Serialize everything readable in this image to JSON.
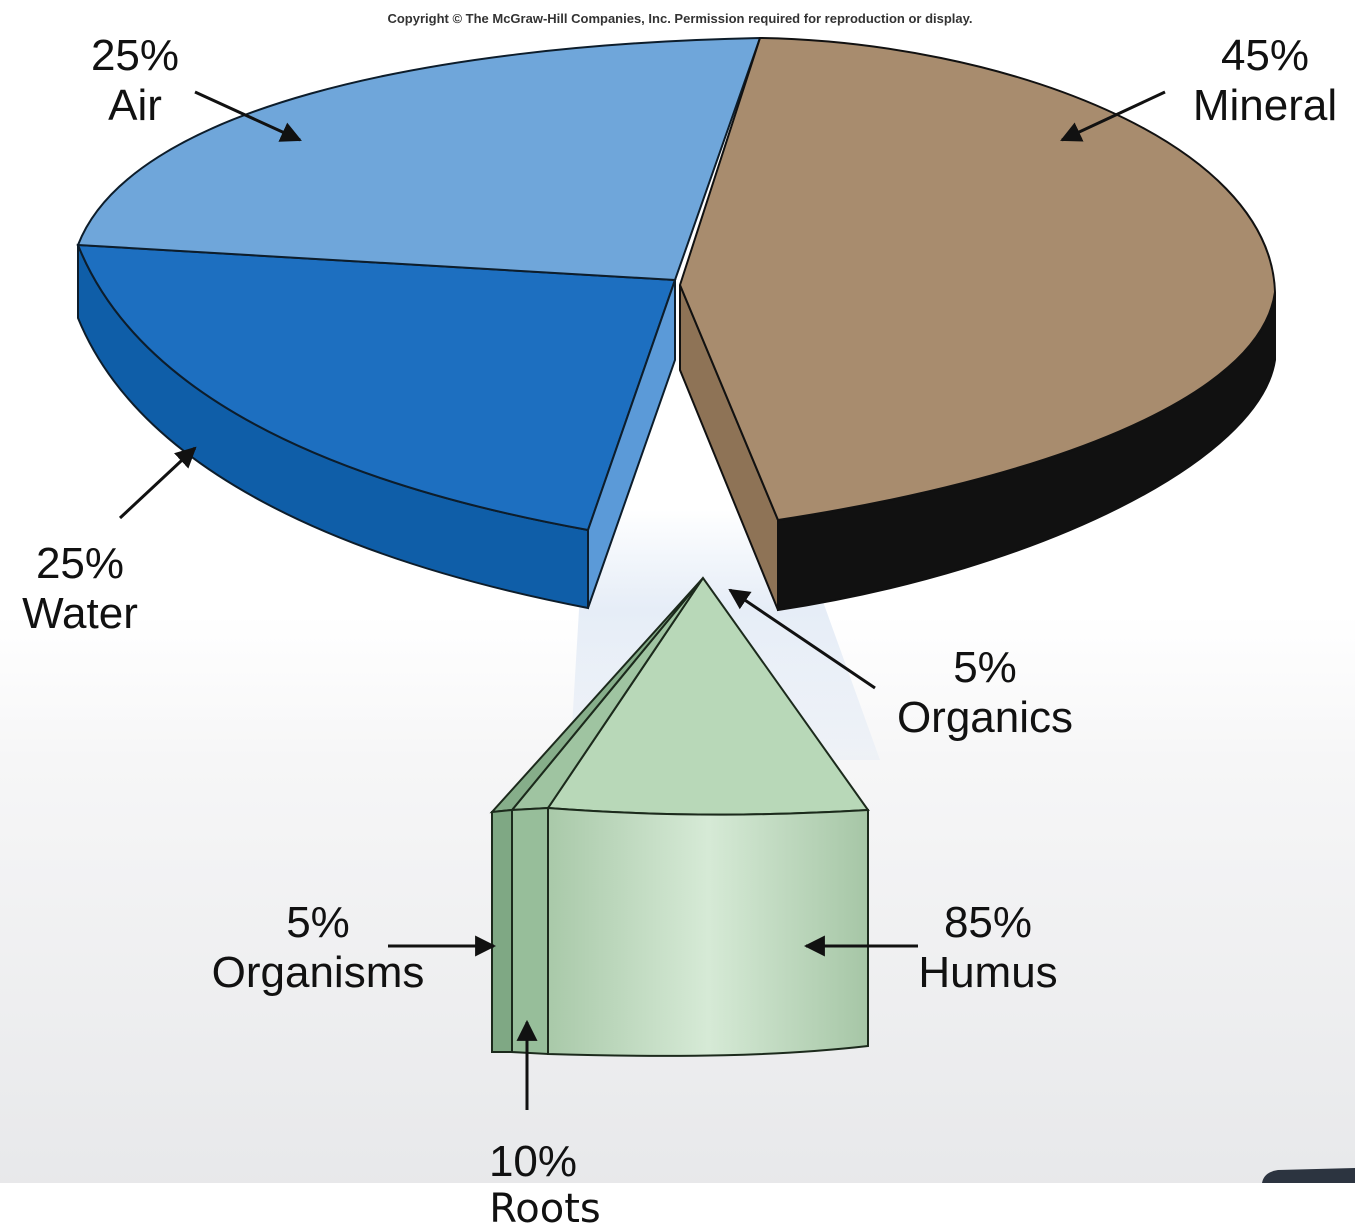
{
  "copyright": "Copyright © The McGraw-Hill Companies, Inc. Permission required for reproduction or display.",
  "colors": {
    "air": "#6fa6da",
    "water": "#1d6fc0",
    "mineral": "#a88c6e",
    "organics": "#b8d8b8",
    "humus": "#b7d3b7",
    "roots": "#97be9a",
    "organisms": "#7fa884"
  },
  "chart_data": [
    {
      "type": "pie",
      "style": "3d-exploded",
      "slices": [
        {
          "label": "Air",
          "pct_text": "25%",
          "value": 25
        },
        {
          "label": "Mineral",
          "pct_text": "45%",
          "value": 45
        },
        {
          "label": "Organics",
          "pct_text": "5%",
          "value": 5
        },
        {
          "label": "Water",
          "pct_text": "25%",
          "value": 25
        }
      ]
    },
    {
      "type": "pie",
      "style": "3d-wedge-breakout",
      "slices": [
        {
          "label": "Organisms",
          "pct_text": "5%",
          "value": 5
        },
        {
          "label": "Roots",
          "pct_text": "10%",
          "value": 10
        },
        {
          "label": "Humus",
          "pct_text": "85%",
          "value": 85
        }
      ]
    }
  ]
}
